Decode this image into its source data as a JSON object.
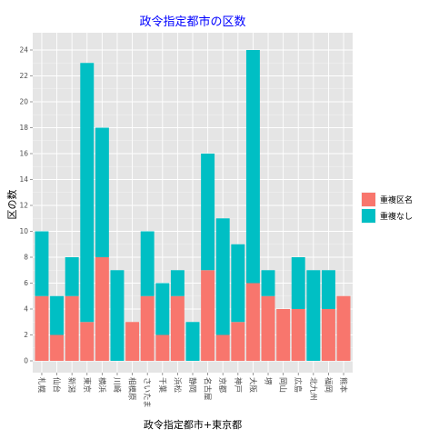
{
  "chart_data": {
    "type": "bar",
    "stacked": true,
    "title": "政令指定都市の区数",
    "xlabel": "政令指定都市+東京都",
    "ylabel": "区の数",
    "ylim": [
      0,
      25
    ],
    "yticks": [
      0,
      2,
      4,
      6,
      8,
      10,
      12,
      14,
      16,
      18,
      20,
      22,
      24
    ],
    "grid": true,
    "legend_position": "right",
    "categories": [
      "札幌",
      "仙台",
      "新潟",
      "東京",
      "横浜",
      "川崎",
      "相模原",
      "さいたま",
      "千葉",
      "浜松",
      "静岡",
      "名古屋",
      "京都",
      "神戸",
      "大阪",
      "堺",
      "岡山",
      "広島",
      "北九州",
      "福岡",
      "熊本"
    ],
    "series": [
      {
        "name": "重複区名",
        "color": "#F8766D",
        "values": [
          5,
          2,
          5,
          3,
          8,
          0,
          3,
          5,
          2,
          5,
          0,
          7,
          2,
          3,
          6,
          5,
          4,
          4,
          0,
          4,
          5
        ]
      },
      {
        "name": "重複なし",
        "color": "#00BFC4",
        "values": [
          5,
          3,
          3,
          20,
          10,
          7,
          0,
          5,
          4,
          2,
          3,
          9,
          9,
          6,
          18,
          2,
          0,
          4,
          7,
          3,
          0
        ]
      }
    ]
  }
}
